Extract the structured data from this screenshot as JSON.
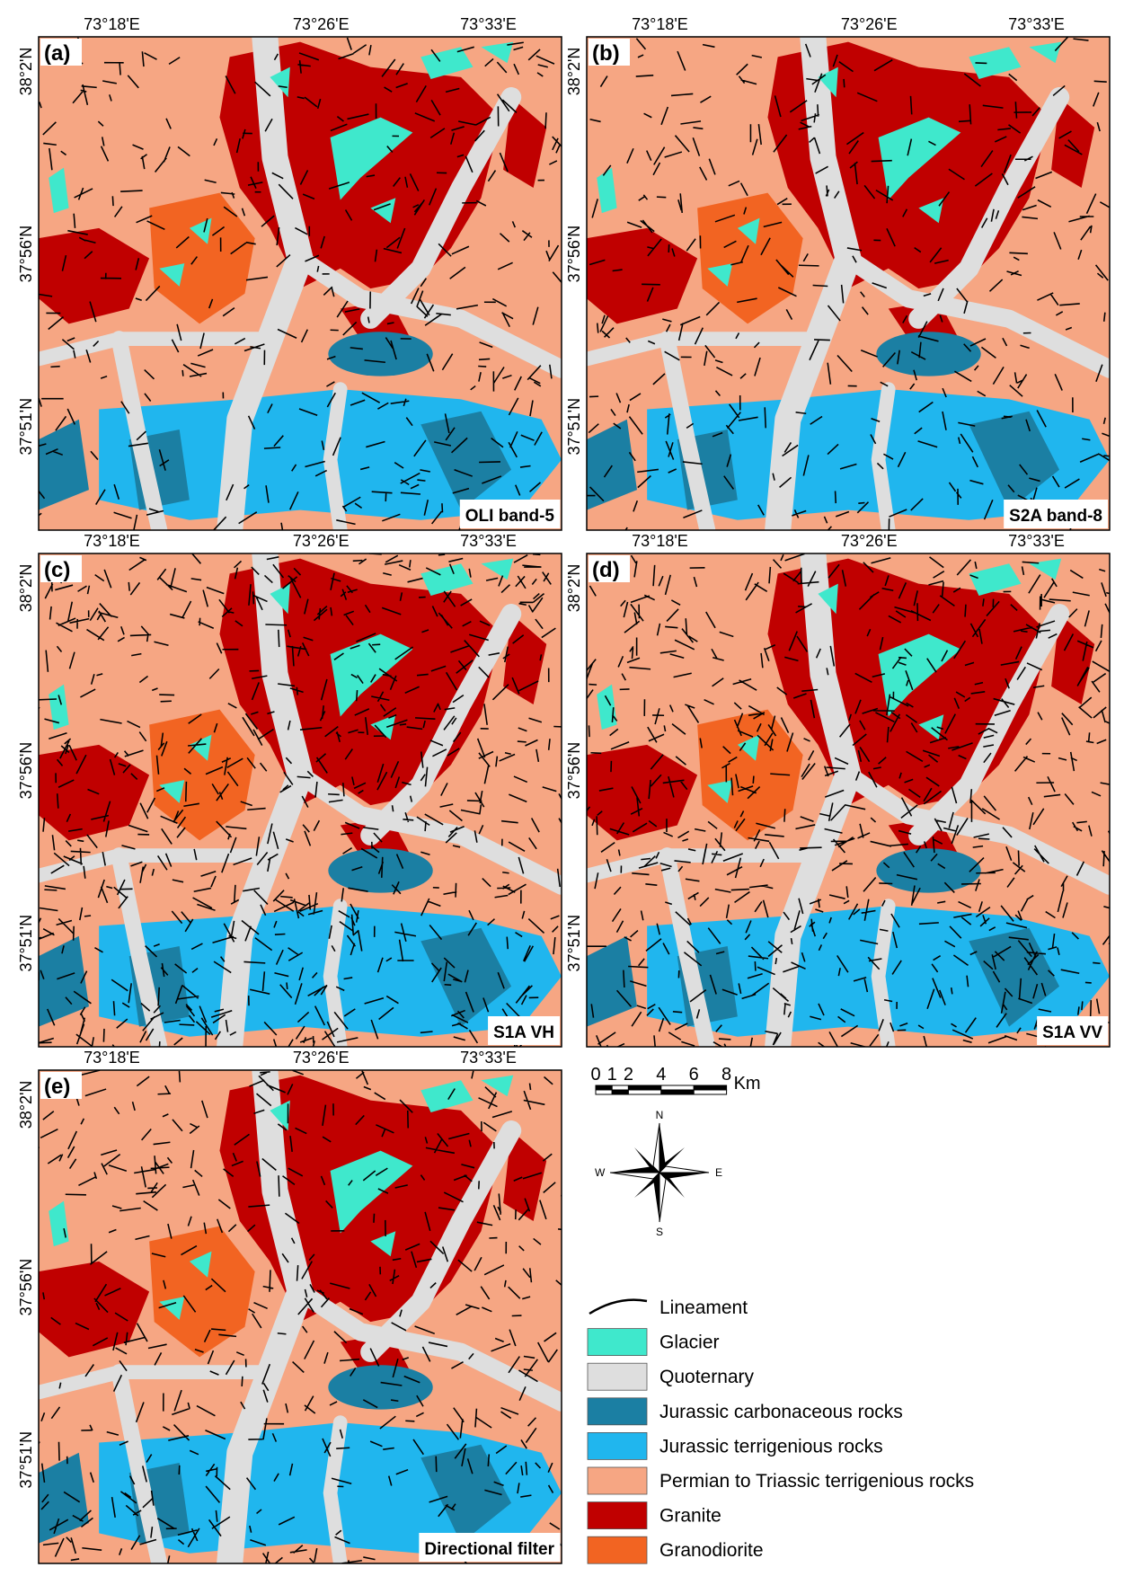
{
  "panels": [
    {
      "label": "(a)",
      "caption": "OLI band-5"
    },
    {
      "label": "(b)",
      "caption": "S2A band-8"
    },
    {
      "label": "(c)",
      "caption": "S1A VH"
    },
    {
      "label": "(d)",
      "caption": "S1A VV"
    },
    {
      "label": "(e)",
      "caption": "Directional filter"
    }
  ],
  "x_axis_labels": [
    "73°18'E",
    "73°26'E",
    "73°33'E"
  ],
  "y_axis_labels": [
    "38°2'N",
    "37°56'N",
    "37°51'N"
  ],
  "scale_bar": {
    "labels": [
      "0",
      "1",
      "2",
      "4",
      "6",
      "8"
    ],
    "unit": "Km"
  },
  "compass": {
    "north": "N",
    "east": "E",
    "south": "S",
    "west": "W"
  },
  "legend": [
    {
      "label": "Lineament",
      "color": "#000000"
    },
    {
      "label": "Glacier",
      "color": "#3fe8cc"
    },
    {
      "label": "Quoternary",
      "color": "#dedede"
    },
    {
      "label": "Jurassic carbonaceous rocks",
      "color": "#1b7fa3"
    },
    {
      "label": "Jurassic terrigenious rocks",
      "color": "#20b6ee"
    },
    {
      "label": "Permian to Triassic terrigenious rocks",
      "color": "#f6a683"
    },
    {
      "label": "Granite",
      "color": "#c00000"
    },
    {
      "label": "Granodiorite",
      "color": "#f26422"
    }
  ]
}
